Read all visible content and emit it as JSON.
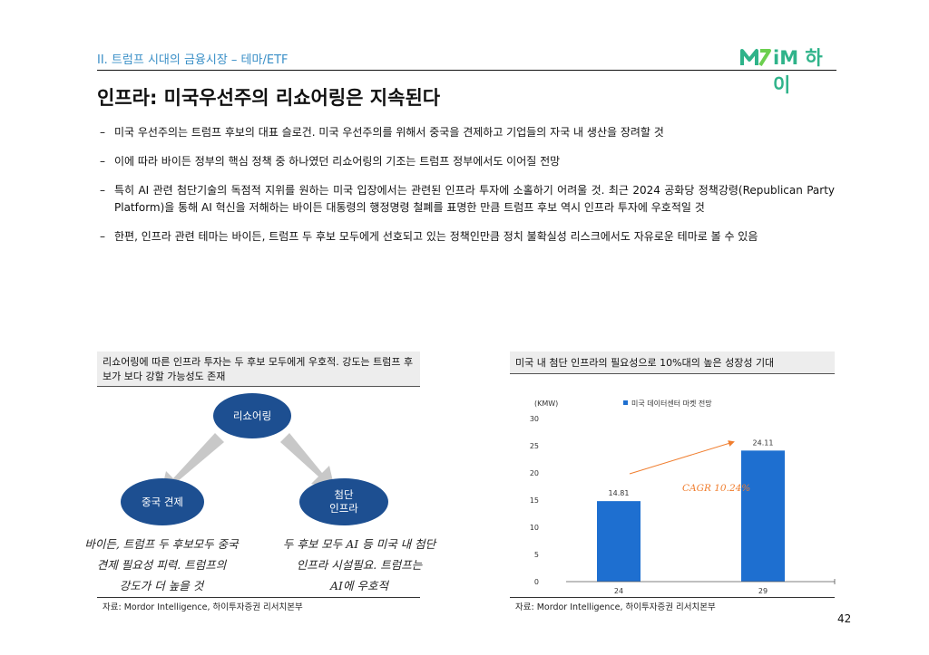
{
  "header": {
    "section": "II. 트럼프 시대의 금융시장 – 테마/ETF",
    "logo_text": "iM 하이",
    "title": "인프라: 미국우선주의 리쇼어링은 지속된다"
  },
  "bullets": [
    "미국 우선주의는 트럼프 후보의 대표 슬로건. 미국 우선주의를 위해서 중국을 견제하고 기업들의 자국 내 생산을 장려할 것",
    "이에 따라 바이든 정부의 핵심 정책 중 하나였던 리쇼어링의 기조는 트럼프 정부에서도 이어질 전망",
    "특히 AI 관련 첨단기술의 독점적 지위를 원하는 미국 입장에서는 관련된 인프라 투자에 소홀하기 어려울 것. 최근 2024 공화당 정책강령(Republican Party Platform)을 통해 AI 혁신을 저해하는 바이든 대통령의 행정명령 철폐를 표명한 만큼 트럼프 후보 역시 인프라 투자에 우호적일 것",
    " 한편, 인프라 관련 테마는 바이든, 트럼프 두 후보 모두에게 선호되고 있는 정책인만큼 정치 불확실성 리스크에서도 자유로운 테마로 볼 수 있음"
  ],
  "bullet_marker": "–",
  "left_panel": {
    "heading": "리쇼어링에 따른 인프라 투자는 두 후보 모두에게 우호적. 강도는 트럼프 후보가 보다 강할 가능성도 존재",
    "top_node": "리쇼어링",
    "left_node": "중국 견제",
    "right_node_line1": "첨단",
    "right_node_line2": "인프라",
    "left_note": [
      "바이든, 트럼프 두 후보모두 중국",
      "견제 필요성 피력. 트럼프의",
      "강도가 더 높을 것"
    ],
    "right_note": [
      "두 후보 모두 AI 등 미국 내 첨단",
      "인프라 시설필요. 트럼프는",
      "AI에 우호적"
    ],
    "source": "자료: Mordor Intelligence, 하이투자증권 리서치본부"
  },
  "right_panel": {
    "heading": "미국 내 첨단 인프라의 필요성으로 10%대의 높은 성장성 기대",
    "source": "자료: Mordor Intelligence, 하이투자증권 리서치본부",
    "annotation": "CAGR 10.24%"
  },
  "chart_data": {
    "type": "bar",
    "unit_label": "(KMW)",
    "categories": [
      "24",
      "29"
    ],
    "series": [
      {
        "name": "미국 데이터센터 마켓 전망",
        "values": [
          14.81,
          24.11
        ]
      }
    ],
    "value_labels": [
      "14.81",
      "24.11"
    ],
    "yticks": [
      "0",
      "5",
      "10",
      "15",
      "20",
      "25",
      "30"
    ],
    "ylim": [
      0,
      30
    ],
    "legend": "top-center",
    "bar_color": "#1e6fd0"
  },
  "page_number": "42"
}
